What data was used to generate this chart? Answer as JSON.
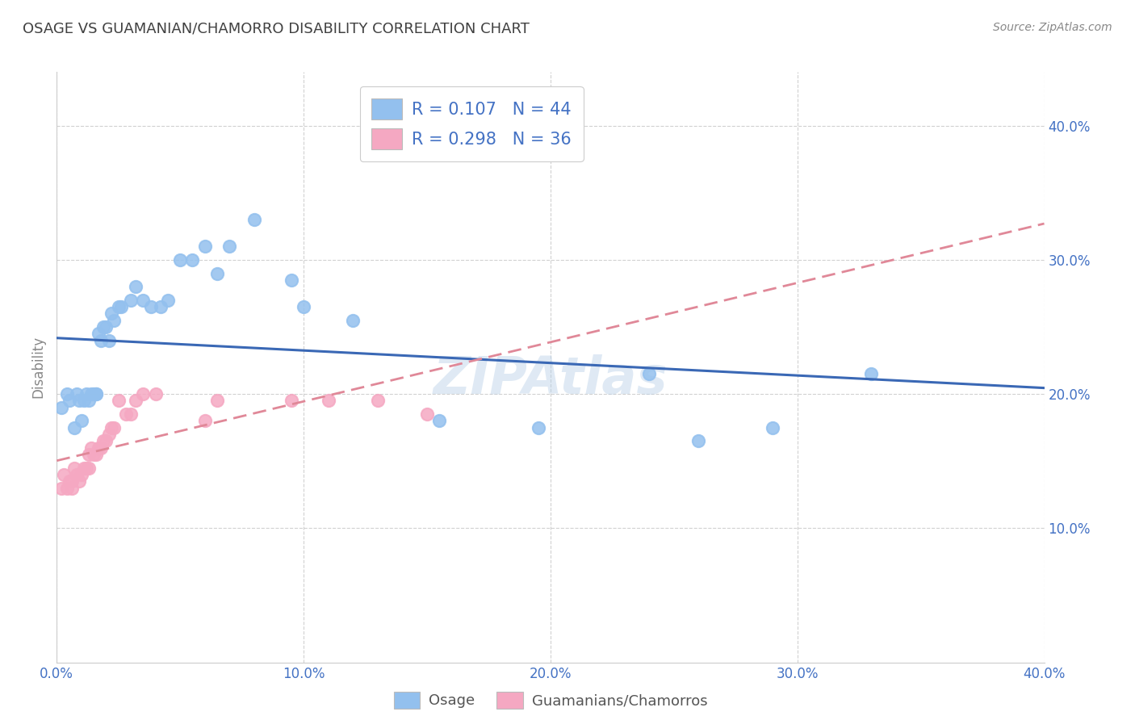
{
  "title": "OSAGE VS GUAMANIAN/CHAMORRO DISABILITY CORRELATION CHART",
  "source": "Source: ZipAtlas.com",
  "ylabel": "Disability",
  "xlim": [
    0.0,
    0.4
  ],
  "ylim": [
    0.0,
    0.44
  ],
  "xticks": [
    0.0,
    0.1,
    0.2,
    0.3,
    0.4
  ],
  "yticks": [
    0.1,
    0.2,
    0.3,
    0.4
  ],
  "xticklabels": [
    "0.0%",
    "10.0%",
    "20.0%",
    "30.0%",
    "40.0%"
  ],
  "yticklabels": [
    "10.0%",
    "20.0%",
    "30.0%",
    "40.0%"
  ],
  "legend_labels": [
    "Osage",
    "Guamanians/Chamorros"
  ],
  "osage_color": "#93C0EE",
  "guam_color": "#F5A8C2",
  "osage_line_color": "#3A68B5",
  "guam_line_color": "#E08898",
  "watermark": "ZIPAtlas",
  "background_color": "#FFFFFF",
  "plot_bg_color": "#FFFFFF",
  "grid_color": "#CCCCCC",
  "title_color": "#404040",
  "axis_label_color": "#888888",
  "tick_color": "#4472C4",
  "legend_text_color": "#4472C4",
  "osage_x": [
    0.002,
    0.004,
    0.005,
    0.007,
    0.008,
    0.009,
    0.01,
    0.011,
    0.012,
    0.013,
    0.014,
    0.015,
    0.016,
    0.016,
    0.017,
    0.018,
    0.019,
    0.02,
    0.021,
    0.022,
    0.023,
    0.025,
    0.026,
    0.03,
    0.032,
    0.035,
    0.038,
    0.042,
    0.045,
    0.05,
    0.055,
    0.06,
    0.065,
    0.07,
    0.08,
    0.095,
    0.1,
    0.12,
    0.155,
    0.195,
    0.24,
    0.26,
    0.29,
    0.33
  ],
  "osage_y": [
    0.19,
    0.2,
    0.195,
    0.175,
    0.2,
    0.195,
    0.18,
    0.195,
    0.2,
    0.195,
    0.2,
    0.2,
    0.2,
    0.2,
    0.245,
    0.24,
    0.25,
    0.25,
    0.24,
    0.26,
    0.255,
    0.265,
    0.265,
    0.27,
    0.28,
    0.27,
    0.265,
    0.265,
    0.27,
    0.3,
    0.3,
    0.31,
    0.29,
    0.31,
    0.33,
    0.285,
    0.265,
    0.255,
    0.18,
    0.175,
    0.215,
    0.165,
    0.175,
    0.215
  ],
  "guam_x": [
    0.002,
    0.003,
    0.004,
    0.005,
    0.006,
    0.006,
    0.007,
    0.008,
    0.009,
    0.01,
    0.011,
    0.012,
    0.013,
    0.013,
    0.014,
    0.015,
    0.016,
    0.017,
    0.018,
    0.019,
    0.02,
    0.021,
    0.022,
    0.023,
    0.025,
    0.028,
    0.03,
    0.032,
    0.035,
    0.04,
    0.06,
    0.065,
    0.095,
    0.11,
    0.13,
    0.15
  ],
  "guam_y": [
    0.13,
    0.14,
    0.13,
    0.135,
    0.135,
    0.13,
    0.145,
    0.14,
    0.135,
    0.14,
    0.145,
    0.145,
    0.145,
    0.155,
    0.16,
    0.155,
    0.155,
    0.16,
    0.16,
    0.165,
    0.165,
    0.17,
    0.175,
    0.175,
    0.195,
    0.185,
    0.185,
    0.195,
    0.2,
    0.2,
    0.18,
    0.195,
    0.195,
    0.195,
    0.195,
    0.185
  ]
}
